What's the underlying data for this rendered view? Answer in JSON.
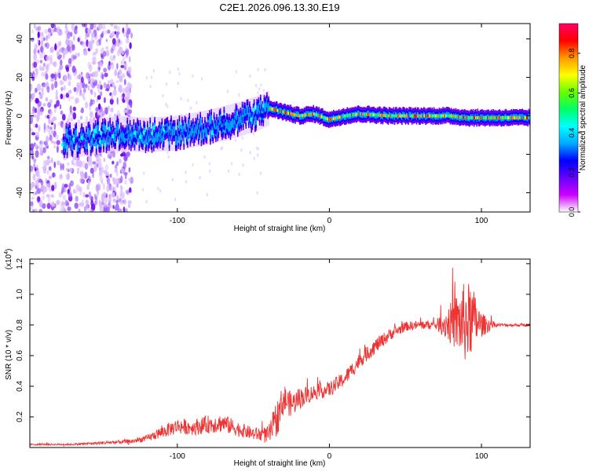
{
  "title": "C2E1.2026.096.13.30.E19",
  "chart_data": [
    {
      "type": "heatmap",
      "xlabel": "Height of straight line (km)",
      "ylabel": "Frequency (Hz)",
      "xlim": [
        -197,
        132
      ],
      "ylim": [
        -50,
        48
      ],
      "xticks": [
        -100,
        0,
        100
      ],
      "xtick_labels": [
        "-100",
        "0",
        "100"
      ],
      "yticks": [
        -40,
        -20,
        0,
        20,
        40
      ],
      "ytick_labels": [
        "-40",
        "-20",
        "0",
        "20",
        "40"
      ],
      "colorbar": {
        "label": "Normalized spectral amplitude",
        "range": [
          0,
          0.95
        ],
        "ticks": [
          0.0,
          0.2,
          0.4,
          0.6,
          0.8
        ],
        "tick_labels": [
          "0.0",
          "0.2",
          "0.4",
          "0.6",
          "0.8"
        ],
        "colors": [
          "#ffffff",
          "#cc00ff",
          "#6600ff",
          "#0000ff",
          "#00aaff",
          "#00ffff",
          "#00ff66",
          "#66ff00",
          "#ffff00",
          "#ff9900",
          "#ff0000",
          "#ff0066"
        ]
      },
      "ridge": {
        "x": [
          -175,
          -160,
          -140,
          -120,
          -100,
          -80,
          -60,
          -45,
          -40,
          -30,
          -20,
          -10,
          0,
          10,
          20,
          40,
          60,
          80,
          90,
          95,
          100,
          132
        ],
        "frequency": [
          -13,
          -12,
          -9,
          -10,
          -9,
          -6,
          -2,
          2,
          4,
          2,
          0,
          1,
          -2,
          0,
          1,
          0,
          0,
          0,
          -1,
          -1,
          -1,
          -1
        ]
      },
      "noise_region": {
        "x": [
          -197,
          -130
        ],
        "frequency": [
          -50,
          48
        ]
      }
    },
    {
      "type": "line",
      "xlabel": "Height of straight line (km)",
      "ylabel": "SNR (10 * v/v)",
      "y_multiplier": "(x10",
      "y_multiplier_exp": "4",
      "y_multiplier_close": ")",
      "xlim": [
        -197,
        132
      ],
      "ylim": [
        0,
        1.23
      ],
      "xticks": [
        -100,
        0,
        100
      ],
      "xtick_labels": [
        "-100",
        "0",
        "100"
      ],
      "yticks": [
        0.2,
        0.4,
        0.6,
        0.8,
        1.0,
        1.2
      ],
      "ytick_labels": [
        "0.2",
        "0.4",
        "0.6",
        "0.8",
        "1.0",
        "1.2"
      ],
      "series": [
        {
          "name": "SNR",
          "color": "#ee3333",
          "x": [
            -197,
            -170,
            -150,
            -130,
            -120,
            -110,
            -100,
            -90,
            -80,
            -70,
            -60,
            -50,
            -40,
            -35,
            -30,
            -25,
            -20,
            -10,
            0,
            10,
            20,
            30,
            40,
            50,
            60,
            70,
            80,
            90,
            95,
            100,
            110,
            120,
            132
          ],
          "y": [
            0.02,
            0.02,
            0.03,
            0.04,
            0.06,
            0.1,
            0.14,
            0.13,
            0.15,
            0.16,
            0.12,
            0.09,
            0.08,
            0.18,
            0.32,
            0.28,
            0.32,
            0.36,
            0.38,
            0.45,
            0.57,
            0.66,
            0.74,
            0.79,
            0.8,
            0.8,
            0.81,
            0.82,
            0.83,
            0.8,
            0.8,
            0.8,
            0.8
          ],
          "noise": [
            0.005,
            0.006,
            0.01,
            0.015,
            0.02,
            0.04,
            0.05,
            0.05,
            0.06,
            0.06,
            0.05,
            0.04,
            0.06,
            0.12,
            0.1,
            0.08,
            0.07,
            0.05,
            0.05,
            0.05,
            0.05,
            0.05,
            0.04,
            0.03,
            0.03,
            0.03,
            0.14,
            0.28,
            0.2,
            0.08,
            0.01,
            0.01,
            0.01
          ]
        }
      ]
    }
  ]
}
